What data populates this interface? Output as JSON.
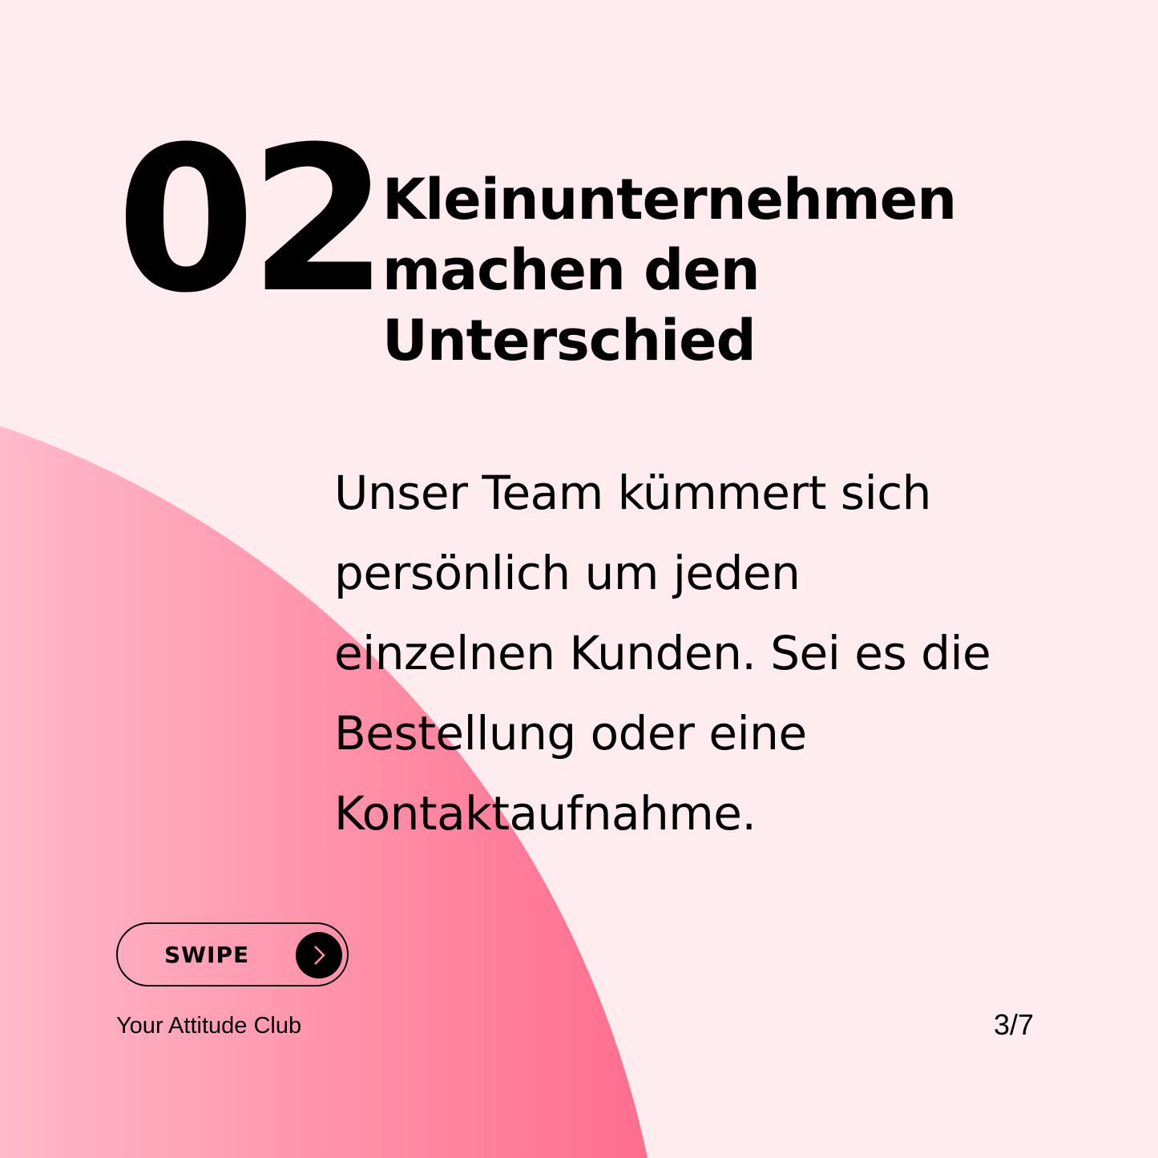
{
  "colors": {
    "background": "#FFECEF",
    "circle_start": "#FFBACA",
    "circle_end": "#FF6E8E",
    "text": "#000000"
  },
  "number": "02",
  "title": [
    "Kleinunternehmen",
    "machen den",
    "Unterschied"
  ],
  "body": [
    "Unser Team kümmert sich",
    "persönlich um jeden",
    "einzelnen Kunden. Sei es die",
    "Bestellung oder eine",
    "Kontaktaufnahme."
  ],
  "swipe": {
    "label": "SWIPE",
    "icon": "chevron-right-icon"
  },
  "brand": "Your Attitude Club",
  "page_indicator": "3/7"
}
